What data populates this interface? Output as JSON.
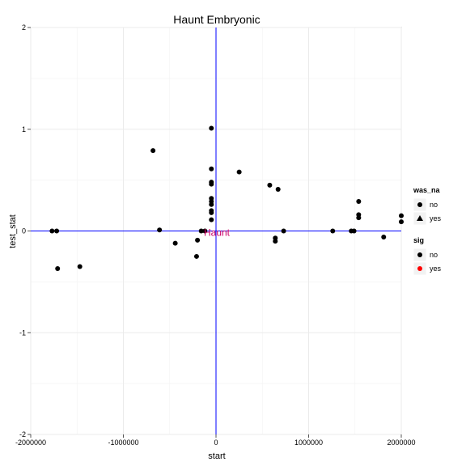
{
  "chart_data": {
    "type": "scatter",
    "title": "Haunt Embryonic",
    "xlabel": "start",
    "ylabel": "test_stat",
    "xlim": [
      -2000000,
      2000000
    ],
    "ylim": [
      -2,
      2
    ],
    "x_ticks": [
      -2000000,
      -1000000,
      0,
      1000000,
      2000000
    ],
    "x_tick_labels": [
      "-2000000",
      "-1000000",
      "0",
      "1000000",
      "2000000"
    ],
    "y_ticks": [
      -2,
      -1,
      0,
      1,
      2
    ],
    "y_tick_labels": [
      "-2",
      "-1",
      "0",
      "1",
      "2"
    ],
    "grid": true,
    "vline_x": 0,
    "hline_y": 0,
    "reference_line_color": "#0000ff",
    "annotation": {
      "text": "Haunt",
      "x": 0,
      "y": 0,
      "color": "#cc0066"
    },
    "legend": {
      "position": "right",
      "groups": [
        {
          "title": "was_na",
          "entries": [
            {
              "label": "no",
              "shape": "circle",
              "color": "#000000"
            },
            {
              "label": "yes",
              "shape": "triangle",
              "color": "#000000"
            }
          ]
        },
        {
          "title": "sig",
          "entries": [
            {
              "label": "no",
              "shape": "circle",
              "color": "#000000"
            },
            {
              "label": "yes",
              "shape": "circle",
              "color": "#ff0000"
            }
          ]
        }
      ]
    },
    "points": [
      {
        "x": -1770000,
        "y": 0.0
      },
      {
        "x": -1720000,
        "y": 0.0
      },
      {
        "x": -1710000,
        "y": -0.37
      },
      {
        "x": -1470000,
        "y": -0.35
      },
      {
        "x": -680000,
        "y": 0.79
      },
      {
        "x": -610000,
        "y": 0.01
      },
      {
        "x": -440000,
        "y": -0.12
      },
      {
        "x": -210000,
        "y": -0.25
      },
      {
        "x": -200000,
        "y": -0.09
      },
      {
        "x": -160000,
        "y": 0.0
      },
      {
        "x": -120000,
        "y": 0.0
      },
      {
        "x": -50000,
        "y": 1.01
      },
      {
        "x": -50000,
        "y": 0.61
      },
      {
        "x": -50000,
        "y": 0.48
      },
      {
        "x": -50000,
        "y": 0.46
      },
      {
        "x": -50000,
        "y": 0.32
      },
      {
        "x": -50000,
        "y": 0.29
      },
      {
        "x": -50000,
        "y": 0.26
      },
      {
        "x": -50000,
        "y": 0.2
      },
      {
        "x": -50000,
        "y": 0.18
      },
      {
        "x": -50000,
        "y": 0.11
      },
      {
        "x": 250000,
        "y": 0.58
      },
      {
        "x": 580000,
        "y": 0.45
      },
      {
        "x": 640000,
        "y": -0.07
      },
      {
        "x": 640000,
        "y": -0.1
      },
      {
        "x": 670000,
        "y": 0.41
      },
      {
        "x": 730000,
        "y": 0.0
      },
      {
        "x": 1260000,
        "y": 0.0
      },
      {
        "x": 1460000,
        "y": 0.0
      },
      {
        "x": 1490000,
        "y": 0.0
      },
      {
        "x": 1540000,
        "y": 0.29
      },
      {
        "x": 1540000,
        "y": 0.16
      },
      {
        "x": 1540000,
        "y": 0.13
      },
      {
        "x": 1810000,
        "y": -0.06
      },
      {
        "x": 2000000,
        "y": 0.15
      },
      {
        "x": 2000000,
        "y": 0.09
      }
    ]
  }
}
